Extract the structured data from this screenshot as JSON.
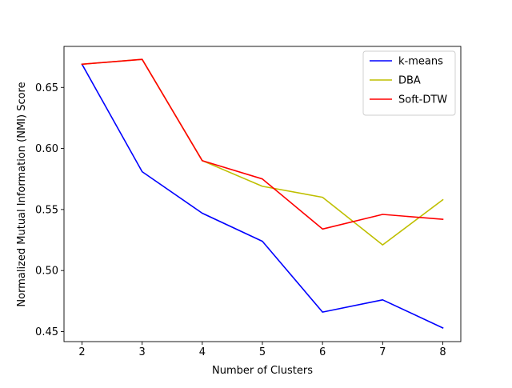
{
  "chart_data": {
    "type": "line",
    "title": "",
    "xlabel": "Number of Clusters",
    "ylabel": "Normalized Mutual Information (NMI) Score",
    "xlim": [
      1.7,
      8.3
    ],
    "ylim": [
      0.4418,
      0.6836
    ],
    "x": [
      2,
      3,
      4,
      5,
      6,
      7,
      8
    ],
    "xticks": [
      "2",
      "3",
      "4",
      "5",
      "6",
      "7",
      "8"
    ],
    "yticks": [
      0.45,
      0.5,
      0.55,
      0.6,
      0.65
    ],
    "ytick_labels": [
      "0.45",
      "0.50",
      "0.55",
      "0.60",
      "0.65"
    ],
    "grid": false,
    "legend_position": "top-right",
    "series": [
      {
        "name": "k-means",
        "color": "#0000ff",
        "values": [
          0.669,
          0.581,
          0.547,
          0.524,
          0.466,
          0.476,
          0.453
        ]
      },
      {
        "name": "DBA",
        "color": "#bfbf00",
        "values": [
          0.669,
          0.673,
          0.59,
          0.569,
          0.56,
          0.521,
          0.558
        ]
      },
      {
        "name": "Soft-DTW",
        "color": "#ff0000",
        "values": [
          0.669,
          0.673,
          0.59,
          0.575,
          0.534,
          0.546,
          0.542
        ]
      }
    ]
  }
}
